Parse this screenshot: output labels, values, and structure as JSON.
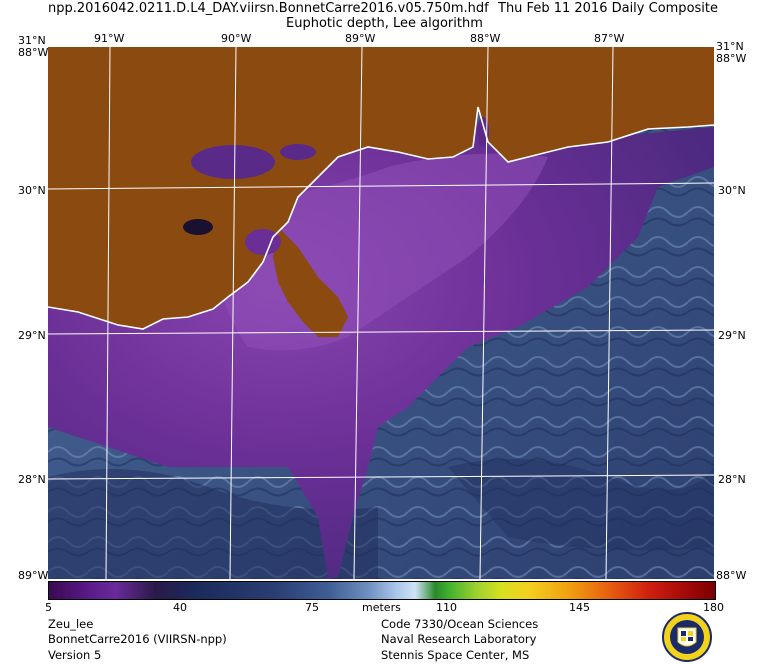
{
  "header": {
    "filename": "npp.2016042.0211.D.L4_DAY.viirsn.BonnetCarre2016.v05.750m.hdf",
    "date_label": "Thu Feb 11 2016 Daily Composite",
    "product_title": "Euphotic depth, Lee algorithm"
  },
  "map": {
    "top_left_corner": "31°N",
    "top_left_corner2": "88°W",
    "top_right_corner": "31°N",
    "top_right_corner2": "88°W",
    "bottom_left_corner": "89°W",
    "bottom_right_corner": "88°W",
    "longitudes": [
      "91°W",
      "90°W",
      "89°W",
      "88°W",
      "87°W"
    ],
    "latitudes": [
      "30°N",
      "29°N",
      "28°N"
    ],
    "colors": {
      "land": "#8b4a10",
      "water_near": "#7a3aa0",
      "water_mid": "#5a2a88",
      "water_far": "#3f5a8a",
      "grid": "#ffffff"
    }
  },
  "colorbar": {
    "unit_label": "meters",
    "ticks": [
      "5",
      "40",
      "75",
      "110",
      "145",
      "180"
    ]
  },
  "footer": {
    "left": [
      "Zeu_lee",
      "BonnetCarre2016 (VIIRSN-npp)",
      "Version 5"
    ],
    "right": [
      "Code 7330/Ocean Sciences",
      "Naval Research Laboratory",
      "Stennis Space Center, MS"
    ]
  },
  "logo": {
    "name": "navy-seal-logo"
  }
}
